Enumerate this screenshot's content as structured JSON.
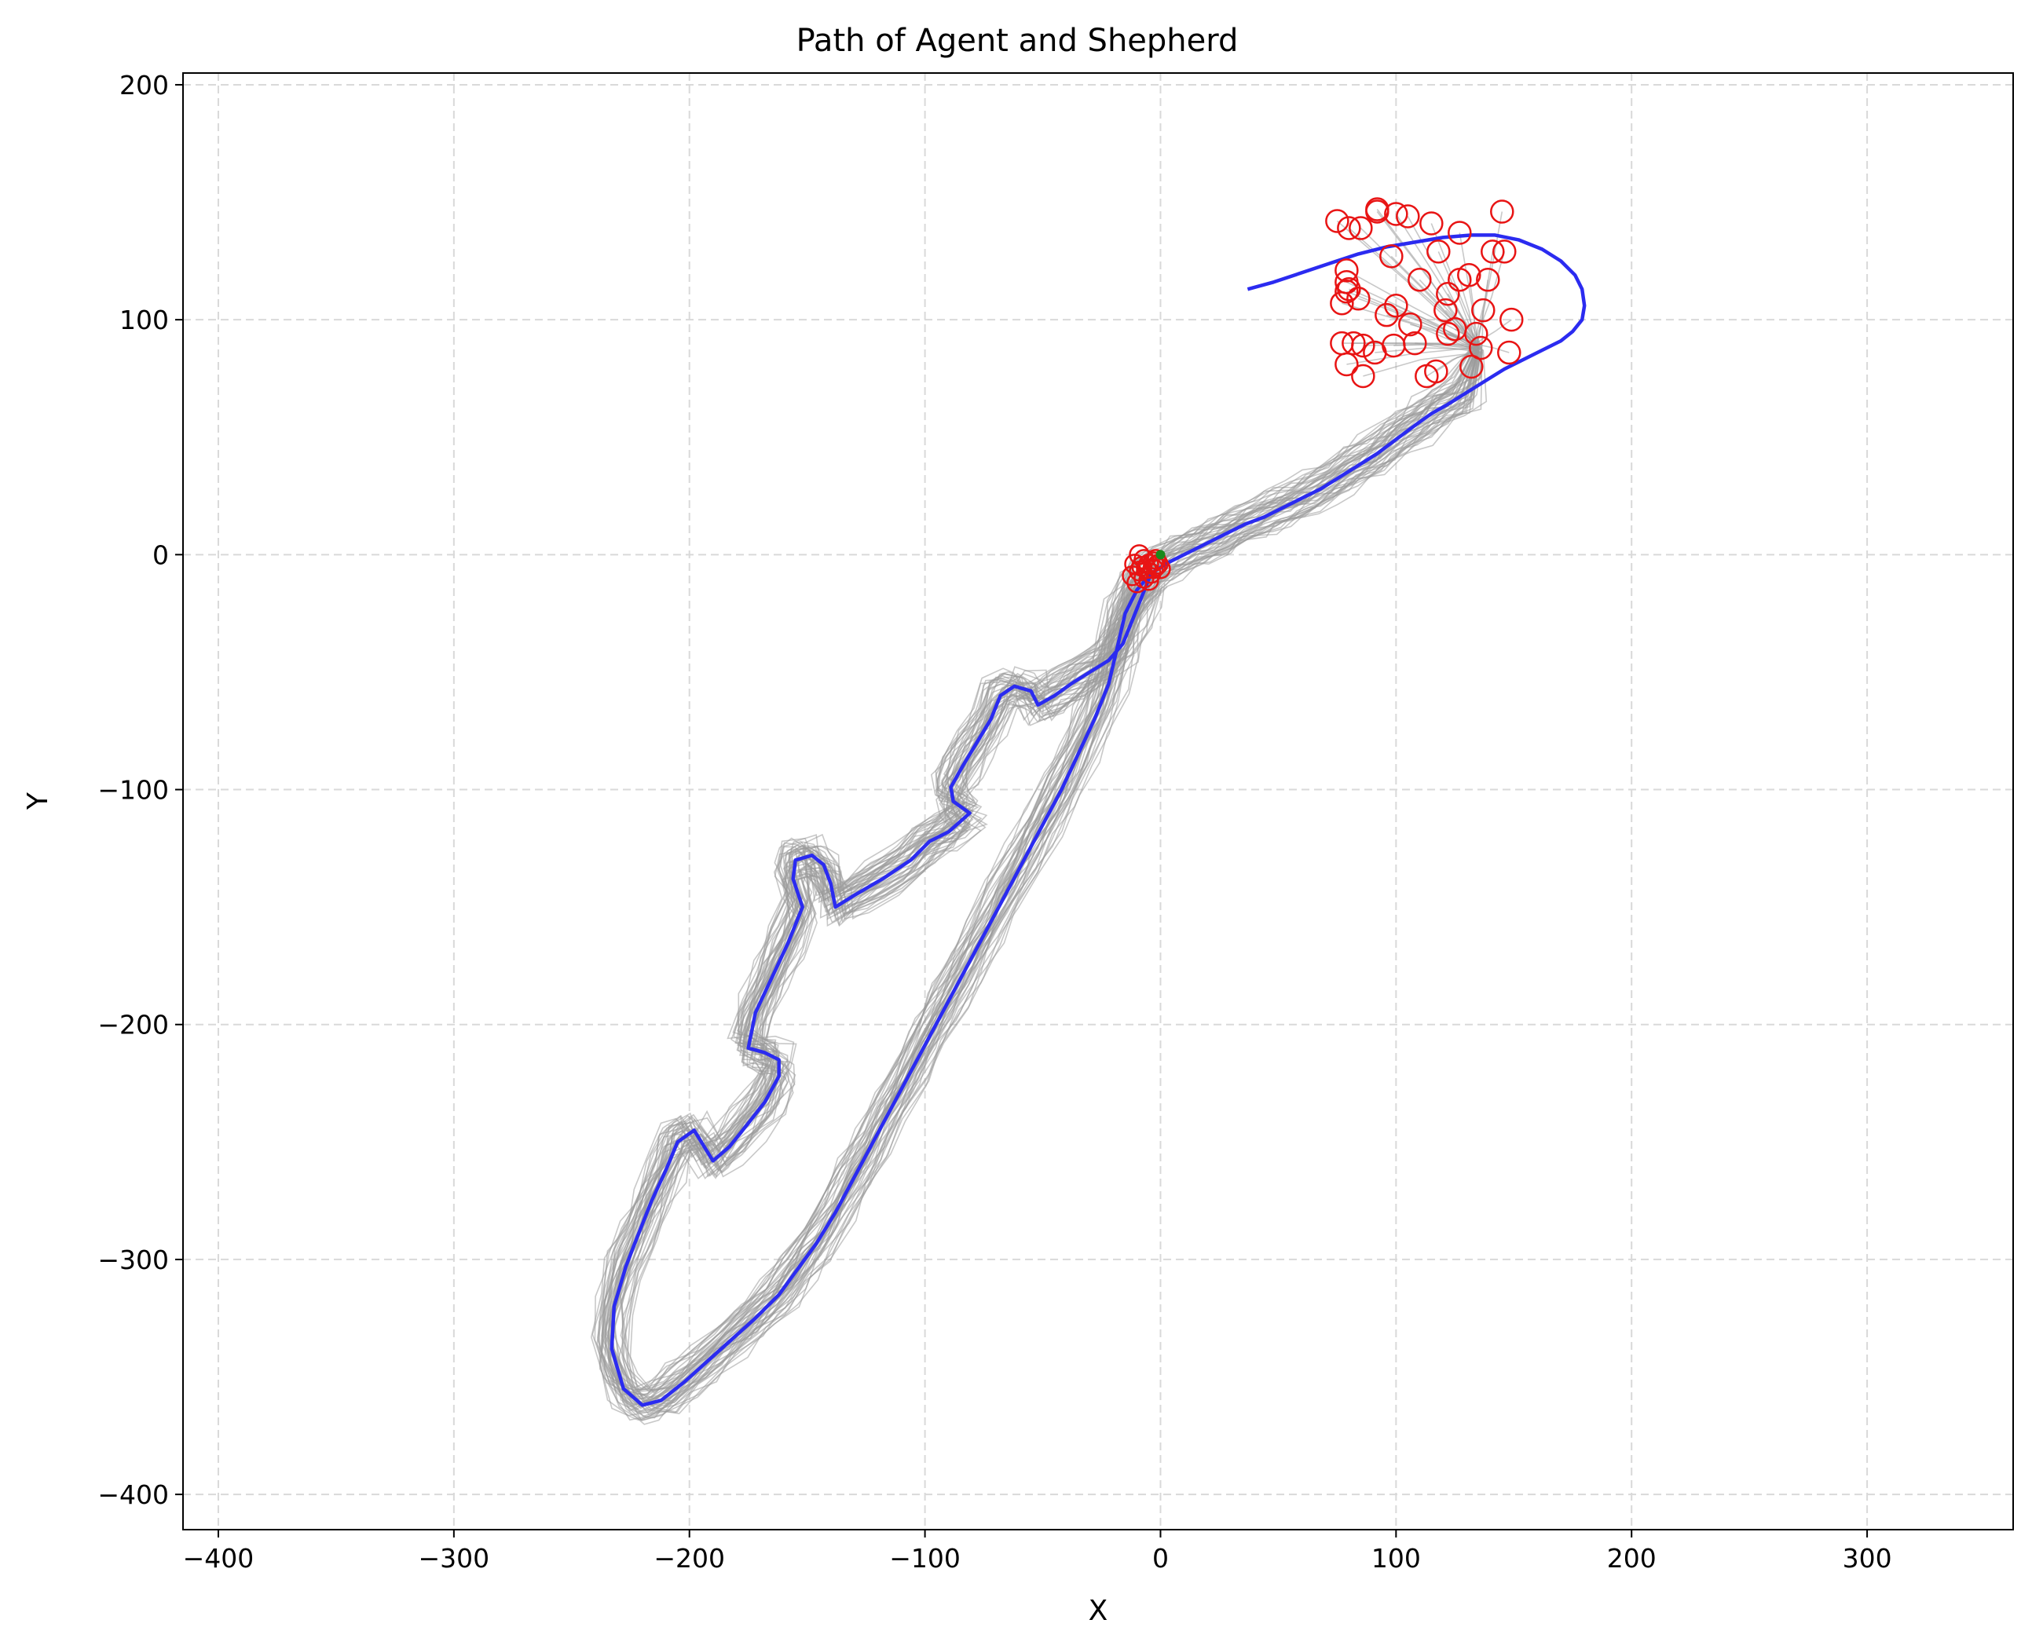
{
  "chart_data": {
    "type": "line",
    "title": "Path of Agent and Shepherd",
    "xlabel": "X",
    "ylabel": "Y",
    "xlim": [
      -415,
      362
    ],
    "ylim": [
      -415,
      205
    ],
    "xticks": [
      -400,
      -300,
      -200,
      -100,
      0,
      100,
      200,
      300
    ],
    "yticks": [
      -400,
      -300,
      -200,
      -100,
      0,
      100,
      200
    ],
    "xtick_labels": [
      "−400",
      "−300",
      "−200",
      "−100",
      "0",
      "100",
      "200",
      "300"
    ],
    "ytick_labels": [
      "−400",
      "−300",
      "−200",
      "−100",
      "0",
      "100",
      "200"
    ],
    "grid": true,
    "colors": {
      "shepherd": "#2b2bf0",
      "agents": "#9a9a9a",
      "agent_start": "#e81414",
      "agent_end": "#e81414",
      "shepherd_start": "#1a8a1a"
    },
    "series": [
      {
        "kind": "shepherd-path",
        "points": [
          [
            37,
            113
          ],
          [
            48,
            116
          ],
          [
            60,
            120
          ],
          [
            72,
            124
          ],
          [
            84,
            128
          ],
          [
            96,
            131
          ],
          [
            108,
            133
          ],
          [
            120,
            135
          ],
          [
            132,
            136
          ],
          [
            142,
            136
          ],
          [
            152,
            134
          ],
          [
            162,
            130
          ],
          [
            170,
            125
          ],
          [
            176,
            119
          ],
          [
            179,
            113
          ],
          [
            180,
            106
          ],
          [
            179,
            100
          ],
          [
            175,
            95
          ],
          [
            170,
            91
          ],
          [
            162,
            87
          ],
          [
            154,
            83
          ],
          [
            146,
            79
          ],
          [
            138,
            74
          ],
          [
            130,
            69
          ],
          [
            122,
            64
          ],
          [
            115,
            60
          ],
          [
            108,
            55
          ],
          [
            100,
            49
          ],
          [
            92,
            43
          ],
          [
            84,
            38
          ],
          [
            76,
            33
          ],
          [
            68,
            28
          ],
          [
            60,
            24
          ],
          [
            52,
            20
          ],
          [
            44,
            16
          ],
          [
            36,
            13
          ],
          [
            28,
            9
          ],
          [
            20,
            5
          ],
          [
            12,
            1
          ],
          [
            4,
            -3
          ],
          [
            -4,
            -8
          ],
          [
            -10,
            -15
          ],
          [
            -15,
            -25
          ],
          [
            -18,
            -38
          ],
          [
            -22,
            -55
          ],
          [
            -28,
            -70
          ],
          [
            -35,
            -85
          ],
          [
            -42,
            -100
          ],
          [
            -50,
            -115
          ],
          [
            -58,
            -130
          ],
          [
            -66,
            -145
          ],
          [
            -74,
            -160
          ],
          [
            -82,
            -175
          ],
          [
            -90,
            -190
          ],
          [
            -98,
            -205
          ],
          [
            -106,
            -220
          ],
          [
            -114,
            -235
          ],
          [
            -122,
            -250
          ],
          [
            -130,
            -265
          ],
          [
            -138,
            -280
          ],
          [
            -146,
            -293
          ],
          [
            -154,
            -304
          ],
          [
            -162,
            -315
          ],
          [
            -172,
            -325
          ],
          [
            -182,
            -334
          ],
          [
            -192,
            -343
          ],
          [
            -202,
            -352
          ],
          [
            -212,
            -360
          ],
          [
            -220,
            -362
          ],
          [
            -228,
            -355
          ],
          [
            -233,
            -338
          ],
          [
            -232,
            -320
          ],
          [
            -227,
            -303
          ],
          [
            -222,
            -290
          ],
          [
            -216,
            -275
          ],
          [
            -210,
            -262
          ],
          [
            -205,
            -250
          ],
          [
            -198,
            -245
          ],
          [
            -190,
            -258
          ],
          [
            -183,
            -252
          ],
          [
            -175,
            -242
          ],
          [
            -168,
            -233
          ],
          [
            -162,
            -222
          ],
          [
            -162,
            -215
          ],
          [
            -168,
            -212
          ],
          [
            -175,
            -210
          ],
          [
            -172,
            -195
          ],
          [
            -165,
            -180
          ],
          [
            -158,
            -165
          ],
          [
            -152,
            -150
          ],
          [
            -156,
            -138
          ],
          [
            -155,
            -130
          ],
          [
            -148,
            -128
          ],
          [
            -143,
            -132
          ],
          [
            -140,
            -140
          ],
          [
            -138,
            -150
          ],
          [
            -130,
            -145
          ],
          [
            -118,
            -138
          ],
          [
            -106,
            -130
          ],
          [
            -98,
            -122
          ],
          [
            -90,
            -118
          ],
          [
            -81,
            -110
          ],
          [
            -88,
            -105
          ],
          [
            -89,
            -99
          ],
          [
            -84,
            -90
          ],
          [
            -78,
            -80
          ],
          [
            -72,
            -70
          ],
          [
            -68,
            -60
          ],
          [
            -62,
            -56
          ],
          [
            -55,
            -58
          ],
          [
            -52,
            -64
          ],
          [
            -45,
            -60
          ],
          [
            -38,
            -55
          ],
          [
            -30,
            -50
          ],
          [
            -22,
            -45
          ],
          [
            -16,
            -38
          ],
          [
            -12,
            -28
          ],
          [
            -8,
            -18
          ],
          [
            -4,
            -8
          ]
        ]
      }
    ],
    "agent_start_points": [
      [
        75,
        142
      ],
      [
        80,
        139
      ],
      [
        85,
        139
      ],
      [
        92,
        147
      ],
      [
        92,
        146
      ],
      [
        100,
        145
      ],
      [
        105,
        144
      ],
      [
        115,
        141
      ],
      [
        127,
        137
      ],
      [
        145,
        146
      ],
      [
        79,
        121
      ],
      [
        79,
        116
      ],
      [
        80,
        113
      ],
      [
        79,
        112
      ],
      [
        77,
        107
      ],
      [
        84,
        109
      ],
      [
        98,
        127
      ],
      [
        118,
        129
      ],
      [
        110,
        117
      ],
      [
        127,
        117
      ],
      [
        131,
        119
      ],
      [
        139,
        117
      ],
      [
        141,
        129
      ],
      [
        146,
        129
      ],
      [
        100,
        106
      ],
      [
        106,
        98
      ],
      [
        96,
        102
      ],
      [
        122,
        111
      ],
      [
        121,
        104
      ],
      [
        137,
        104
      ],
      [
        149,
        100
      ],
      [
        122,
        94
      ],
      [
        125,
        96
      ],
      [
        134,
        94
      ],
      [
        136,
        88
      ],
      [
        148,
        86
      ],
      [
        108,
        90
      ],
      [
        99,
        89
      ],
      [
        91,
        86
      ],
      [
        77,
        90
      ],
      [
        82,
        90
      ],
      [
        86,
        89
      ],
      [
        79,
        81
      ],
      [
        86,
        76
      ],
      [
        113,
        76
      ],
      [
        117,
        78
      ],
      [
        132,
        80
      ]
    ],
    "agent_end_points": [
      [
        -9,
        0
      ],
      [
        -11,
        -4
      ],
      [
        -7,
        -2
      ],
      [
        -5,
        -4
      ],
      [
        -3,
        -3
      ],
      [
        -2,
        -5
      ],
      [
        -6,
        -6
      ],
      [
        -9,
        -7
      ],
      [
        -12,
        -9
      ],
      [
        -4,
        -8
      ],
      [
        -1,
        -4
      ],
      [
        -7,
        -10
      ],
      [
        -10,
        -12
      ],
      [
        -3,
        -6
      ],
      [
        0,
        -6
      ],
      [
        -5,
        -11
      ],
      [
        -8,
        -5
      ],
      [
        -2,
        -2
      ]
    ],
    "shepherd_start_point": [
      0,
      0
    ]
  }
}
